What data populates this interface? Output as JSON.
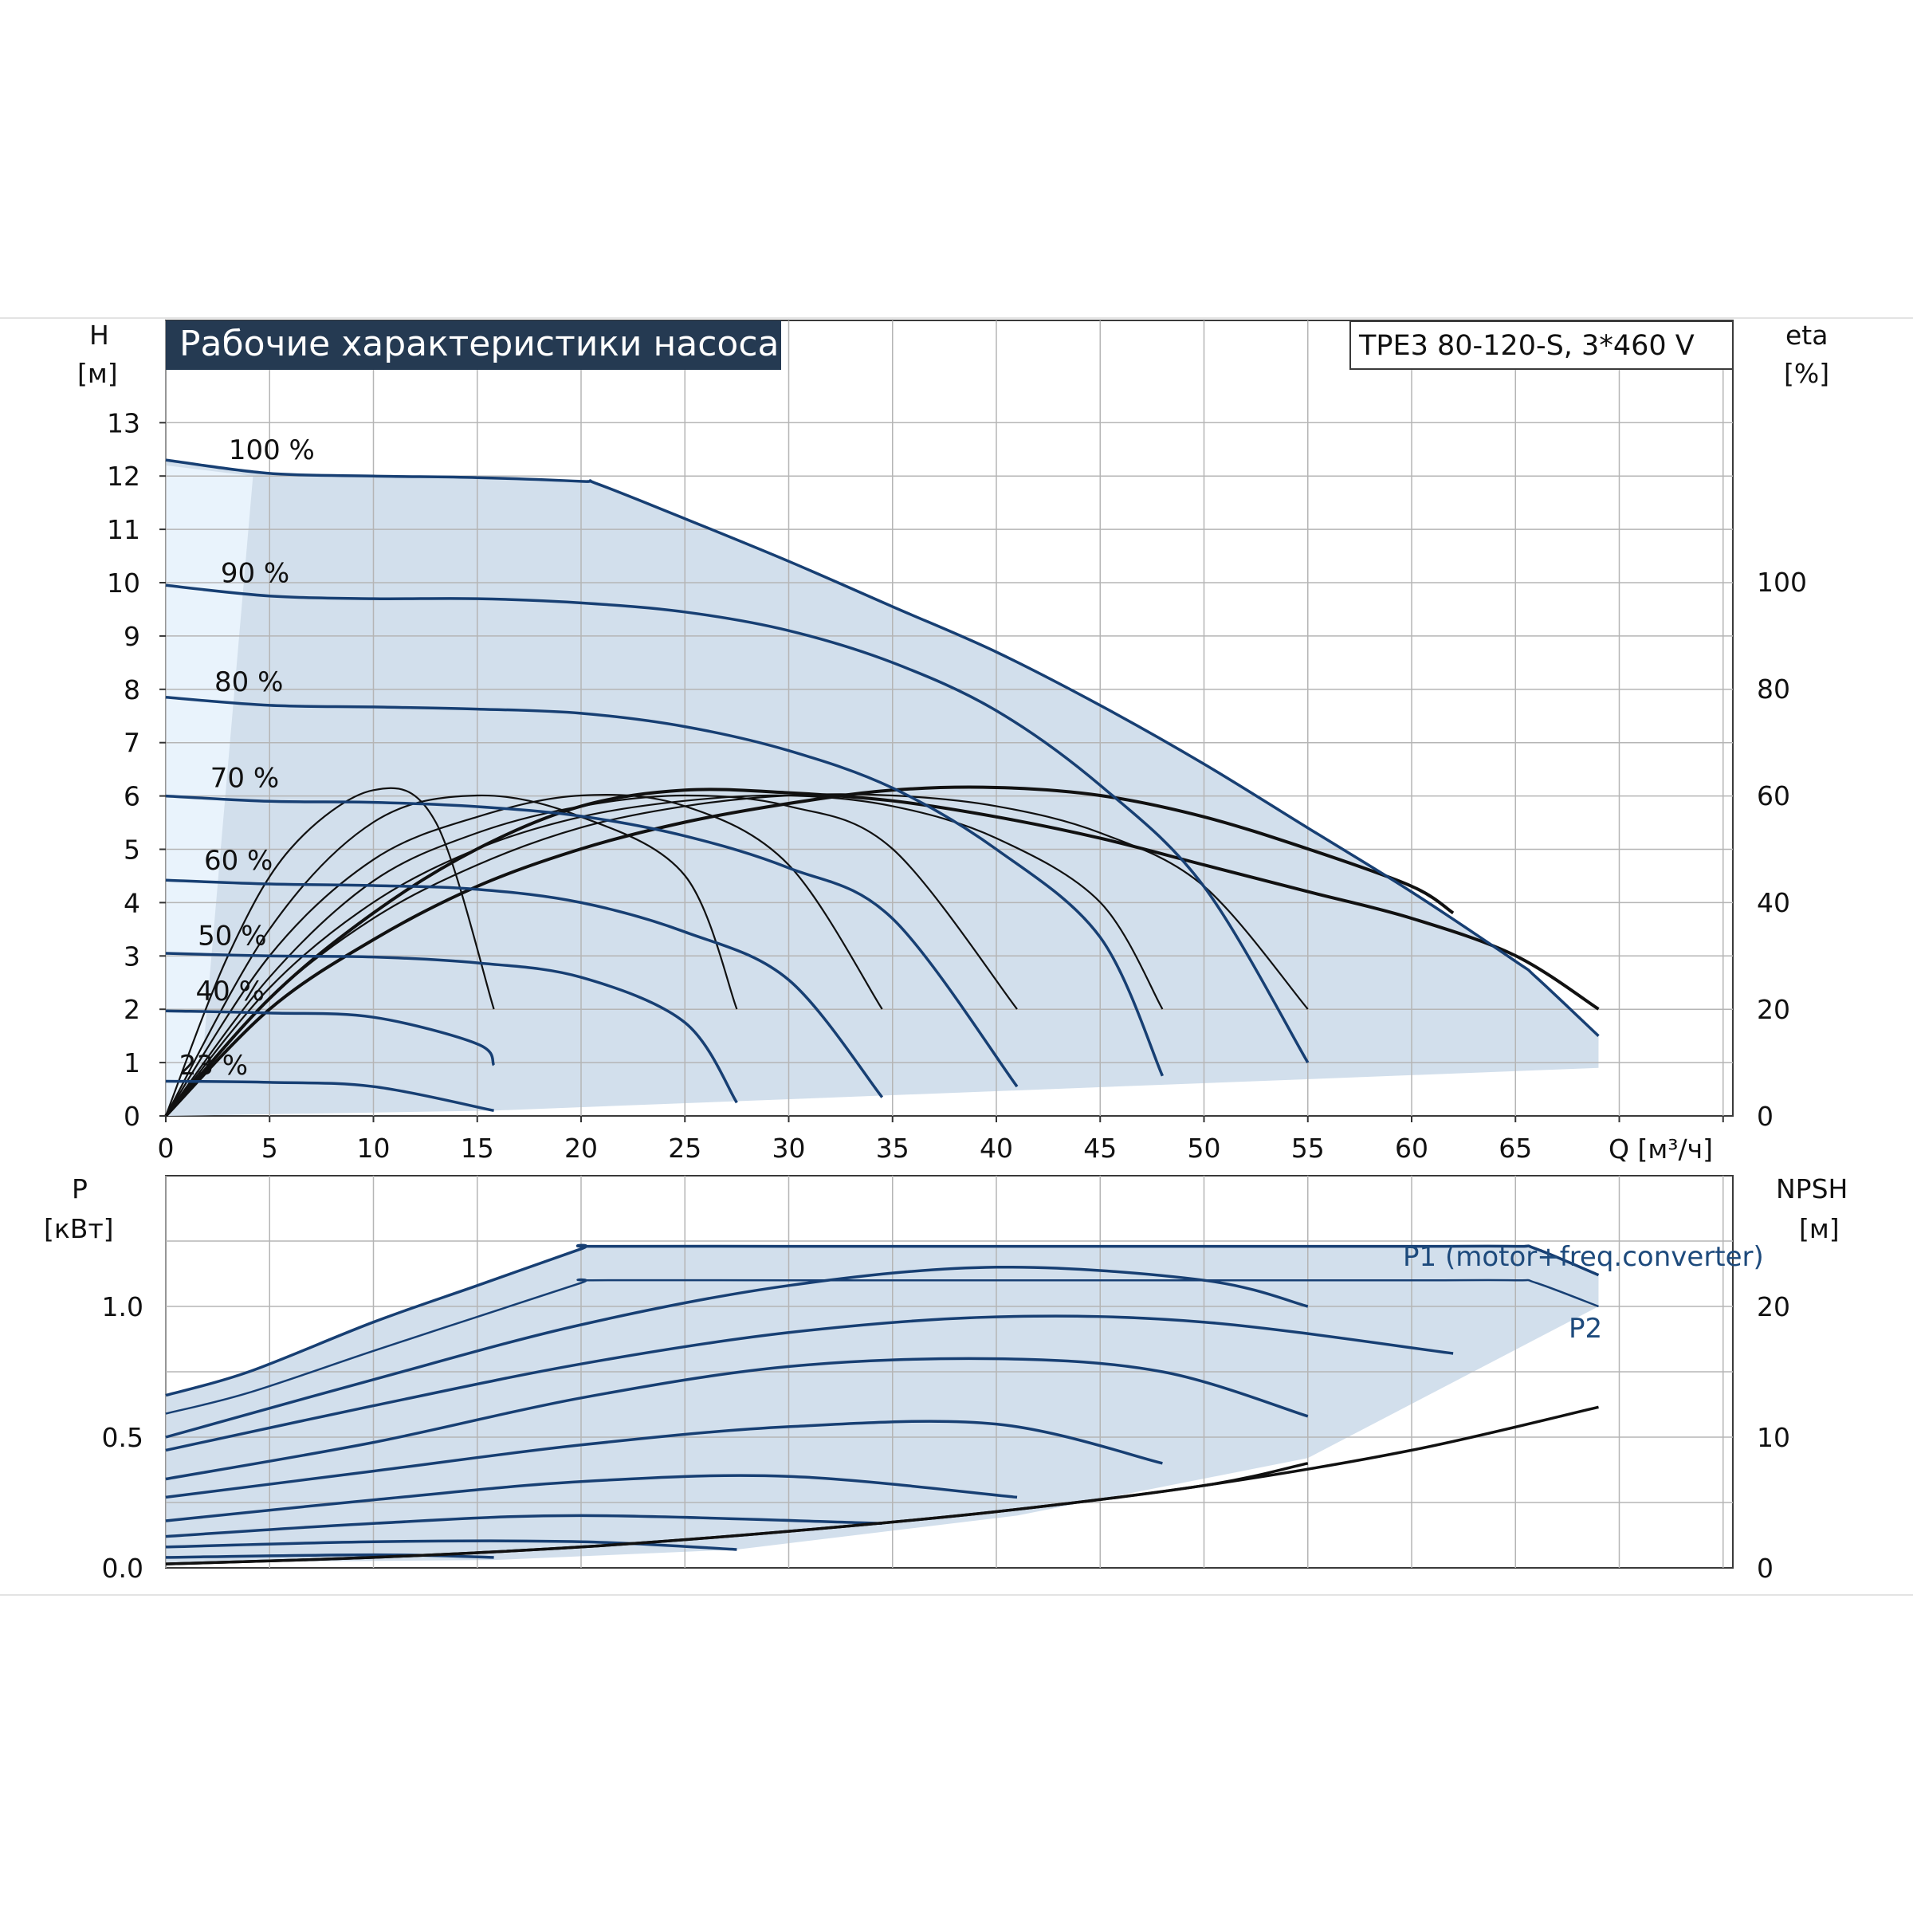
{
  "colors": {
    "curve_blue": "#173f73",
    "fill_region": "#d2dfec",
    "fill_light": "#e9f3fc",
    "grid": "#b5b5b5",
    "title_bg": "#253a52"
  },
  "header": {
    "title": "Рабочие характеристики насоса",
    "model": "TPE3 80-120-S, 3*460 V"
  },
  "upper_axes": {
    "left_label_top": "H",
    "left_label_unit": "[м]",
    "right_label_top": "eta",
    "right_label_unit": "[%]",
    "x_label": "Q [м³/ч]"
  },
  "lower_axes": {
    "left_label_top": "P",
    "left_label_unit": "[кВт]",
    "right_label_top": "NPSH",
    "right_label_unit": "[м]"
  },
  "legend": {
    "p1": "P1 (motor+freq.converter)",
    "p2": "P2"
  },
  "chart_data": [
    {
      "type": "line",
      "title": "Рабочие характеристики насоса",
      "xlabel": "Q [м³/ч]",
      "ylabel": "H [м]",
      "y2label": "eta [%]",
      "xlim": [
        0,
        75
      ],
      "ylim": [
        0,
        13
      ],
      "y2lim": [
        0,
        100
      ],
      "x_ticks": [
        "0",
        "5",
        "10",
        "15",
        "20",
        "25",
        "30",
        "35",
        "40",
        "45",
        "50",
        "55",
        "60",
        "65"
      ],
      "y_ticks": [
        "0",
        "1",
        "2",
        "3",
        "4",
        "5",
        "6",
        "7",
        "8",
        "9",
        "10",
        "11",
        "12",
        "13"
      ],
      "y2_ticks": [
        "0",
        "20",
        "40",
        "60",
        "80",
        "100"
      ],
      "grid": true,
      "series": [
        {
          "name": "100 %",
          "x": [
            0,
            5,
            10,
            15,
            20,
            20.8,
            25,
            30,
            35,
            40,
            45,
            50,
            55,
            60,
            65,
            66,
            69
          ],
          "y": [
            12.3,
            12.05,
            12.0,
            11.97,
            11.9,
            11.85,
            11.2,
            10.4,
            9.55,
            8.7,
            7.7,
            6.6,
            5.4,
            4.2,
            2.9,
            2.6,
            1.5
          ]
        },
        {
          "name": "90 %",
          "x": [
            0,
            5,
            10,
            15,
            20,
            25,
            30,
            35,
            40,
            45,
            50,
            55
          ],
          "y": [
            9.95,
            9.75,
            9.7,
            9.7,
            9.62,
            9.45,
            9.1,
            8.5,
            7.6,
            6.2,
            4.3,
            1.0
          ]
        },
        {
          "name": "80 %",
          "x": [
            0,
            5,
            10,
            15,
            20,
            25,
            30,
            35,
            40,
            45,
            48
          ],
          "y": [
            7.85,
            7.7,
            7.67,
            7.63,
            7.55,
            7.3,
            6.85,
            6.15,
            5.0,
            3.35,
            0.75
          ]
        },
        {
          "name": "70 %",
          "x": [
            0,
            5,
            10,
            15,
            20,
            25,
            30,
            35,
            41
          ],
          "y": [
            6.0,
            5.9,
            5.88,
            5.8,
            5.62,
            5.25,
            4.65,
            3.7,
            0.55
          ]
        },
        {
          "name": "60 %",
          "x": [
            0,
            5,
            10,
            15,
            20,
            25,
            30,
            34.5
          ],
          "y": [
            4.42,
            4.35,
            4.32,
            4.25,
            4.0,
            3.45,
            2.55,
            0.35
          ]
        },
        {
          "name": "50 %",
          "x": [
            0,
            5,
            10,
            15,
            20,
            25,
            27.5
          ],
          "y": [
            3.05,
            3.0,
            2.98,
            2.87,
            2.6,
            1.75,
            0.25
          ]
        },
        {
          "name": "40 %",
          "x": [
            0,
            5,
            10,
            15,
            15.8
          ],
          "y": [
            1.97,
            1.93,
            1.85,
            1.35,
            0.95
          ]
        },
        {
          "name": "23 %",
          "x": [
            0,
            5,
            10,
            15.8
          ],
          "y": [
            0.65,
            0.63,
            0.55,
            0.1
          ]
        }
      ],
      "eta_series": [
        {
          "x": [
            0,
            5,
            10,
            15,
            20,
            25,
            30,
            35,
            40,
            45,
            50,
            55,
            60,
            62
          ],
          "y": [
            0,
            20,
            33,
            43,
            50,
            55,
            58.5,
            61,
            61.5,
            60,
            56,
            50,
            43,
            38
          ]
        },
        {
          "x": [
            0,
            5,
            10,
            15,
            20,
            25,
            30,
            35,
            40,
            45,
            50,
            55,
            60,
            65,
            69
          ],
          "y": [
            0,
            22,
            38,
            50,
            58,
            61,
            60.5,
            59,
            56,
            52,
            47,
            42,
            37,
            30,
            20
          ]
        },
        {
          "x": [
            0,
            3,
            6,
            10,
            13,
            15.8
          ],
          "y": [
            0,
            30,
            50,
            61,
            55,
            20
          ]
        },
        {
          "x": [
            0,
            5,
            10,
            15,
            20,
            25,
            27.5
          ],
          "y": [
            0,
            35,
            55,
            60,
            56,
            45,
            20
          ]
        },
        {
          "x": [
            0,
            5,
            10,
            15,
            20,
            25,
            30,
            34.5
          ],
          "y": [
            0,
            30,
            48,
            56,
            60,
            58,
            47,
            20
          ]
        },
        {
          "x": [
            0,
            5,
            10,
            15,
            20,
            25,
            30,
            35,
            41
          ],
          "y": [
            0,
            26,
            44,
            53,
            58,
            60,
            58,
            50,
            20
          ]
        },
        {
          "x": [
            0,
            5,
            10,
            15,
            20,
            25,
            30,
            35,
            40,
            45,
            48
          ],
          "y": [
            0,
            24,
            40,
            50,
            56,
            59,
            60,
            58,
            52,
            40,
            20
          ]
        },
        {
          "x": [
            0,
            5,
            10,
            15,
            20,
            25,
            30,
            35,
            40,
            45,
            50,
            55
          ],
          "y": [
            0,
            22,
            37,
            47,
            54,
            58,
            60,
            60,
            58,
            53,
            43,
            20
          ]
        }
      ],
      "annotations": [
        "100 %",
        "90 %",
        "80 %",
        "70 %",
        "60 %",
        "50 %",
        "40 %",
        "23 %"
      ]
    },
    {
      "type": "line",
      "xlabel": "Q [м³/ч]",
      "ylabel": "P [кВт]",
      "y2label": "NPSH [м]",
      "xlim": [
        0,
        75
      ],
      "ylim": [
        0,
        1.3
      ],
      "y2lim": [
        0,
        26
      ],
      "y_ticks": [
        "0.0",
        "0.5",
        "1.0"
      ],
      "y2_ticks": [
        "0",
        "10",
        "20"
      ],
      "grid": true,
      "series": [
        {
          "name": "P1 (motor+freq.converter)",
          "x": [
            0,
            4,
            10,
            15,
            20,
            20.5,
            30,
            40,
            50,
            60,
            65,
            66,
            69
          ],
          "y": [
            0.66,
            0.75,
            0.94,
            1.08,
            1.22,
            1.23,
            1.23,
            1.23,
            1.23,
            1.23,
            1.23,
            1.22,
            1.12
          ]
        },
        {
          "name": "P2",
          "x": [
            0,
            4,
            10,
            15,
            20,
            20.5,
            30,
            40,
            50,
            60,
            65,
            66,
            69
          ],
          "y": [
            0.59,
            0.67,
            0.83,
            0.96,
            1.09,
            1.1,
            1.1,
            1.1,
            1.1,
            1.1,
            1.1,
            1.09,
            1.0
          ]
        },
        {
          "x": [
            0,
            10,
            20,
            30,
            40,
            50,
            55
          ],
          "y": [
            0.5,
            0.72,
            0.93,
            1.08,
            1.15,
            1.1,
            1.0
          ]
        },
        {
          "x": [
            0,
            10,
            20,
            30,
            40,
            50,
            62
          ],
          "y": [
            0.45,
            0.62,
            0.78,
            0.9,
            0.96,
            0.94,
            0.82
          ]
        },
        {
          "x": [
            0,
            10,
            20,
            30,
            40,
            48,
            55
          ],
          "y": [
            0.34,
            0.48,
            0.65,
            0.77,
            0.8,
            0.75,
            0.58
          ]
        },
        {
          "x": [
            0,
            10,
            20,
            30,
            40,
            48
          ],
          "y": [
            0.27,
            0.37,
            0.47,
            0.54,
            0.55,
            0.4
          ]
        },
        {
          "x": [
            0,
            10,
            20,
            30,
            41
          ],
          "y": [
            0.18,
            0.26,
            0.33,
            0.35,
            0.27
          ]
        },
        {
          "x": [
            0,
            10,
            20,
            34.5
          ],
          "y": [
            0.12,
            0.17,
            0.2,
            0.17
          ]
        },
        {
          "x": [
            0,
            10,
            20,
            27.5
          ],
          "y": [
            0.08,
            0.1,
            0.1,
            0.07
          ]
        },
        {
          "x": [
            0,
            10,
            15.8
          ],
          "y": [
            0.04,
            0.05,
            0.04
          ]
        }
      ],
      "npsh_series": [
        {
          "x": [
            0,
            10,
            20,
            30,
            40,
            50,
            60,
            69
          ],
          "y": [
            0.3,
            0.8,
            1.6,
            2.8,
            4.3,
            6.3,
            9.0,
            12.3
          ]
        },
        {
          "x": [
            0,
            10,
            20,
            30,
            40,
            50,
            55
          ],
          "y": [
            0.3,
            0.8,
            1.6,
            2.8,
            4.3,
            6.3,
            8.0
          ]
        }
      ]
    }
  ]
}
